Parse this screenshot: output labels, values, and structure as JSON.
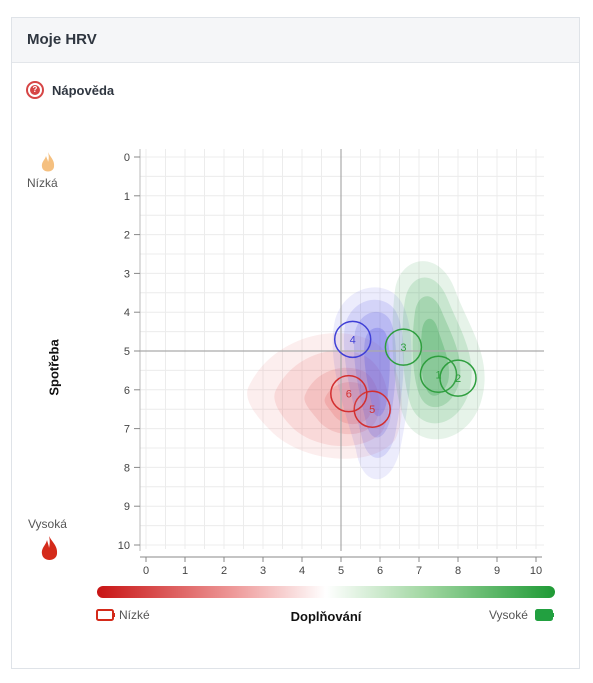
{
  "card": {
    "title": "Moje HRV"
  },
  "help": {
    "label": "Nápověda",
    "icon": "help-circle-icon"
  },
  "axis_labels": {
    "y_top": "Nízká",
    "y_bottom": "Vysoká",
    "y_title": "Spotřeba",
    "x_left": "Nízké",
    "x_right": "Vysoké",
    "x_title": "Doplňování"
  },
  "colors": {
    "red": "#d32f2f",
    "green": "#2e9e3e",
    "blue": "#3f3fd6",
    "accent_orange": "#f0a040"
  },
  "chart_data": {
    "type": "scatter",
    "title": "",
    "xlabel": "Doplňování",
    "ylabel": "Spotřeba",
    "xlim": [
      0,
      10
    ],
    "ylim": [
      0,
      10
    ],
    "y_inverted": true,
    "x_ticks": [
      "0",
      "1",
      "2",
      "3",
      "4",
      "5",
      "6",
      "7",
      "8",
      "9",
      "10"
    ],
    "y_ticks": [
      "0",
      "1",
      "2",
      "3",
      "4",
      "5",
      "6",
      "7",
      "8",
      "9",
      "10"
    ],
    "grid": true,
    "reference_lines": {
      "x": 5,
      "y": 5
    },
    "points": [
      {
        "label": "1",
        "x": 7.5,
        "y": 5.6,
        "color": "green"
      },
      {
        "label": "2",
        "x": 8.0,
        "y": 5.7,
        "color": "green"
      },
      {
        "label": "3",
        "x": 6.6,
        "y": 4.9,
        "color": "green"
      },
      {
        "label": "4",
        "x": 5.3,
        "y": 4.7,
        "color": "blue"
      },
      {
        "label": "5",
        "x": 5.8,
        "y": 6.5,
        "color": "red"
      },
      {
        "label": "6",
        "x": 5.2,
        "y": 6.1,
        "color": "red"
      }
    ]
  }
}
